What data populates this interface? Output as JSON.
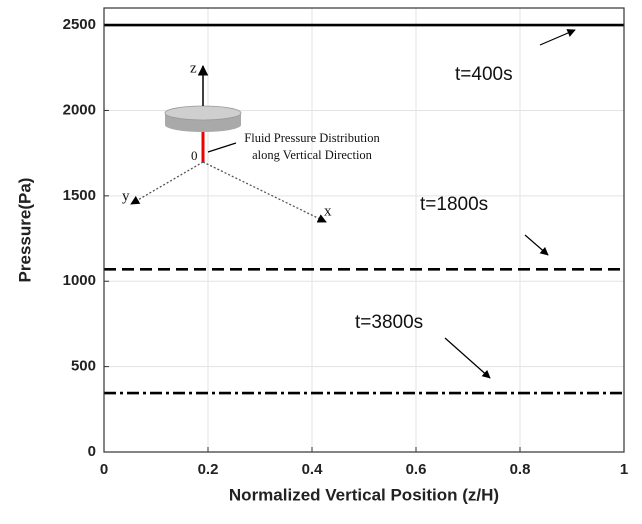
{
  "chart_data": {
    "type": "line",
    "x_label": "Normalized Vertical Position (z/H)",
    "y_label": "Pressure(Pa)",
    "x": [
      0,
      1
    ],
    "series": [
      {
        "name": "t=400s",
        "color": "#000000",
        "dash": "solid",
        "values": [
          2500,
          2500
        ]
      },
      {
        "name": "t=1800s",
        "color": "#000000",
        "dash": "dashed",
        "values": [
          1070,
          1070
        ]
      },
      {
        "name": "t=3800s",
        "color": "#000000",
        "dash": "dashdot",
        "values": [
          345,
          345
        ]
      }
    ],
    "xlim": [
      0,
      1
    ],
    "xticks": [
      0,
      0.2,
      0.4,
      0.6,
      0.8,
      1
    ],
    "ylim": [
      0,
      2600
    ],
    "yticks": [
      0,
      500,
      1000,
      1500,
      2000,
      2500
    ],
    "grid": true,
    "inset": {
      "axis_z": "z",
      "axis_y": "y",
      "axis_x": "x",
      "origin": "0",
      "caption": [
        "Fluid Pressure Distribution",
        "along Vertical Direction"
      ]
    }
  }
}
